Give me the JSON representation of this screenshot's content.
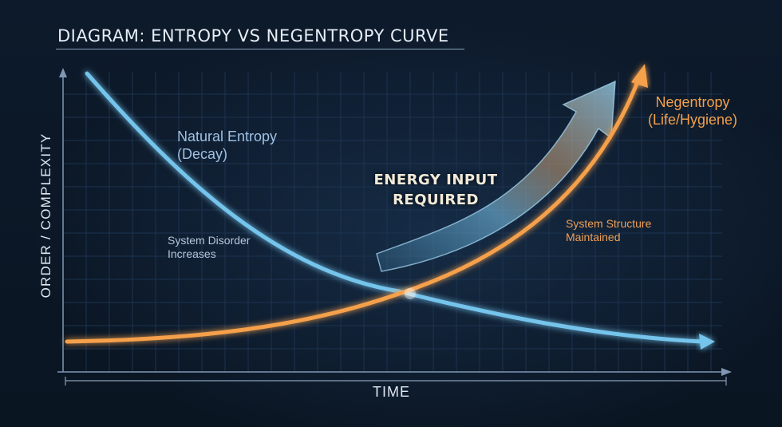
{
  "title": "DIAGRAM: ENTROPY VS NEGENTROPY CURVE",
  "axes": {
    "y_label": "ORDER / COMPLEXITY",
    "x_label": "TIME"
  },
  "curves": {
    "entropy": {
      "label_line1": "Natural Entropy",
      "label_line2": "(Decay)",
      "note_line1": "System Disorder",
      "note_line2": "Increases",
      "color": "#74c4ec"
    },
    "negentropy": {
      "label_line1": "Negentropy",
      "label_line2": "(Life/Hygiene)",
      "note_line1": "System Structure",
      "note_line2": "Maintained",
      "color": "#f5a04c"
    }
  },
  "energy_input": {
    "line1": "ENERGY INPUT",
    "line2": "REQUIRED"
  },
  "colors": {
    "background": "#0b1624",
    "grid": "#1c3350",
    "axis": "#7f97b3"
  }
}
